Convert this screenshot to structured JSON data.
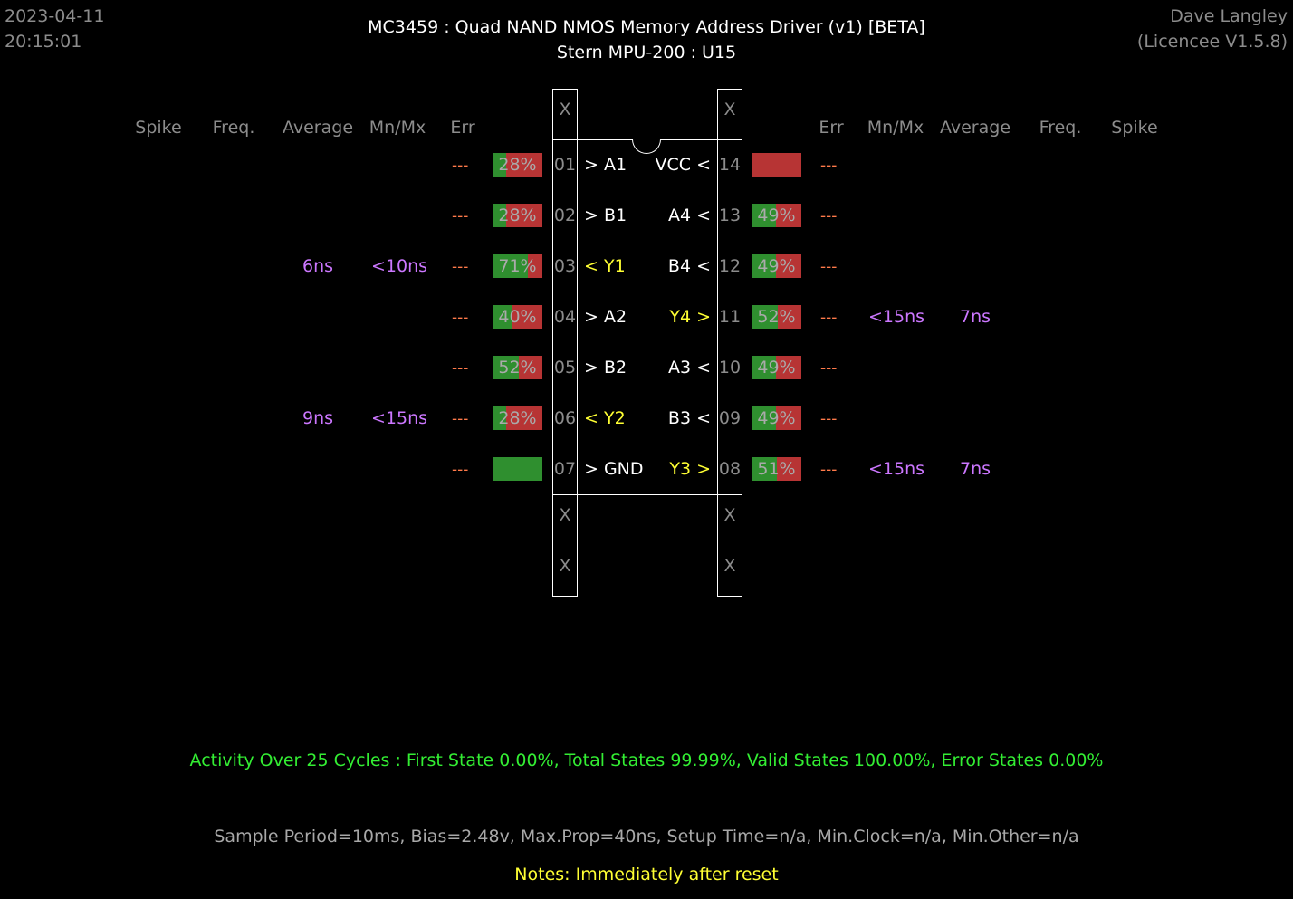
{
  "header": {
    "date": "2023-04-11",
    "time": "20:15:01",
    "title": "MC3459  :  Quad NAND NMOS Memory Address Driver (v1) [BETA]",
    "subtitle": "Stern MPU-200 : U15",
    "author": "Dave Langley",
    "licence": "(Licencee V1.5.8)"
  },
  "columns": {
    "left": [
      "Spike",
      "Freq.",
      "Average",
      "Mn/Mx",
      "Err"
    ],
    "right": [
      "Err",
      "Mn/Mx",
      "Average",
      "Freq.",
      "Spike"
    ]
  },
  "x_marks": [
    "X",
    "X",
    "X",
    "X",
    "X",
    "X"
  ],
  "left_pins": [
    {
      "num": "01",
      "signal": "> A1",
      "signal_color": "white",
      "pct_text": "28%",
      "green": 0.28,
      "err": "---",
      "mnmx": "",
      "avg": ""
    },
    {
      "num": "02",
      "signal": "> B1",
      "signal_color": "white",
      "pct_text": "28%",
      "green": 0.28,
      "err": "---",
      "mnmx": "",
      "avg": ""
    },
    {
      "num": "03",
      "signal": "< Y1",
      "signal_color": "yellow",
      "pct_text": "71%",
      "green": 0.71,
      "err": "---",
      "mnmx": "<10ns",
      "avg": "6ns"
    },
    {
      "num": "04",
      "signal": "> A2",
      "signal_color": "white",
      "pct_text": "40%",
      "green": 0.4,
      "err": "---",
      "mnmx": "",
      "avg": ""
    },
    {
      "num": "05",
      "signal": "> B2",
      "signal_color": "white",
      "pct_text": "52%",
      "green": 0.52,
      "err": "---",
      "mnmx": "",
      "avg": ""
    },
    {
      "num": "06",
      "signal": "< Y2",
      "signal_color": "yellow",
      "pct_text": "28%",
      "green": 0.28,
      "err": "---",
      "mnmx": "<15ns",
      "avg": "9ns"
    },
    {
      "num": "07",
      "signal": "> GND",
      "signal_color": "white",
      "pct_text": "",
      "green": 1.0,
      "err": "---",
      "mnmx": "",
      "avg": ""
    }
  ],
  "right_pins": [
    {
      "num": "14",
      "signal": "VCC <",
      "signal_color": "white",
      "pct_text": "",
      "green": 0.0,
      "err": "---",
      "mnmx": "",
      "avg": ""
    },
    {
      "num": "13",
      "signal": "A4 <",
      "signal_color": "white",
      "pct_text": "49%",
      "green": 0.49,
      "err": "---",
      "mnmx": "",
      "avg": ""
    },
    {
      "num": "12",
      "signal": "B4 <",
      "signal_color": "white",
      "pct_text": "49%",
      "green": 0.49,
      "err": "---",
      "mnmx": "",
      "avg": ""
    },
    {
      "num": "11",
      "signal": "Y4 >",
      "signal_color": "yellow",
      "pct_text": "52%",
      "green": 0.52,
      "err": "---",
      "mnmx": "<15ns",
      "avg": "7ns"
    },
    {
      "num": "10",
      "signal": "A3 <",
      "signal_color": "white",
      "pct_text": "49%",
      "green": 0.49,
      "err": "---",
      "mnmx": "",
      "avg": ""
    },
    {
      "num": "09",
      "signal": "B3 <",
      "signal_color": "white",
      "pct_text": "49%",
      "green": 0.49,
      "err": "---",
      "mnmx": "",
      "avg": ""
    },
    {
      "num": "08",
      "signal": "Y3 >",
      "signal_color": "yellow",
      "pct_text": "51%",
      "green": 0.51,
      "err": "---",
      "mnmx": "<15ns",
      "avg": "7ns"
    }
  ],
  "footer": {
    "activity": "Activity Over 25 Cycles  :  First State 0.00%,  Total States 99.99%,  Valid States 100.00%,  Error States 0.00%",
    "sample": "Sample Period=10ms,  Bias=2.48v,  Max.Prop=40ns,  Setup Time=n/a,  Min.Clock=n/a,  Min.Other=n/a",
    "notes": "Notes:  Immediately after reset"
  },
  "colors": {
    "bar_green": "#2f8f2f",
    "bar_red": "#b73434",
    "signal_yellow": "#ffff33",
    "timing_purple": "#cc77ff",
    "err_orange": "#ff7a4a",
    "activity_green": "#33ee33"
  }
}
